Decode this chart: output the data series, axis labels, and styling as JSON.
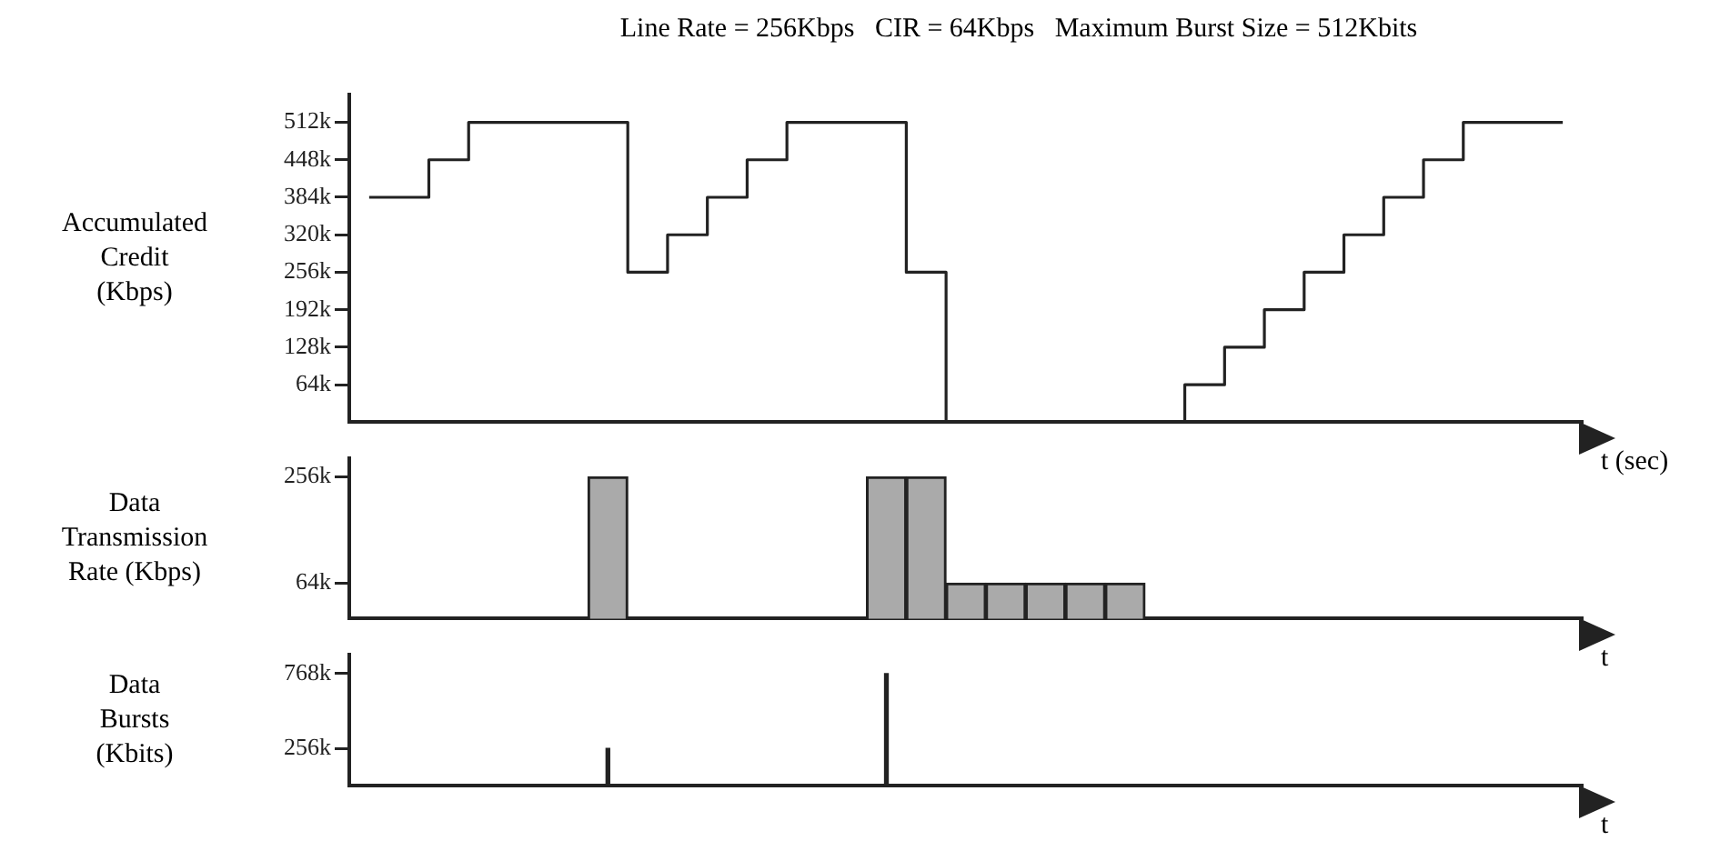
{
  "chart_data": [
    {
      "type": "step",
      "title": "Line Rate = 256Kbps   CIR = 64Kbps   Maximum Burst Size = 512Kbits",
      "ylabel": "Accumulated Credit (Kbps)",
      "xlabel": "t (sec)",
      "categories": [
        null,
        null,
        null,
        null,
        null,
        null,
        null,
        null,
        null,
        null,
        null,
        null,
        null,
        null,
        null,
        null,
        null,
        null,
        null,
        null,
        null,
        null,
        null,
        null,
        null,
        null,
        null,
        null,
        null,
        null,
        null
      ],
      "values": [
        384,
        384,
        448,
        512,
        512,
        512,
        512,
        256,
        320,
        384,
        448,
        512,
        512,
        512,
        256,
        0,
        0,
        0,
        0,
        0,
        0,
        64,
        128,
        192,
        256,
        320,
        384,
        448,
        512,
        512,
        512
      ],
      "color": "#222222",
      "ylim": [
        0,
        560
      ],
      "yticks": [
        {
          "value": 64,
          "label": "64k"
        },
        {
          "value": 128,
          "label": "128k"
        },
        {
          "value": 192,
          "label": "192k"
        },
        {
          "value": 256,
          "label": "256k"
        },
        {
          "value": 320,
          "label": "320k"
        },
        {
          "value": 384,
          "label": "384k"
        },
        {
          "value": 448,
          "label": "448k"
        },
        {
          "value": 512,
          "label": "512k"
        }
      ],
      "grid": false
    },
    {
      "type": "bar",
      "ylabel": "Data Transmission Rate (Kbps)",
      "xlabel": "t",
      "categories": [
        null,
        null,
        null,
        null,
        null,
        null,
        null,
        null,
        null,
        null,
        null,
        null,
        null,
        null,
        null,
        null,
        null,
        null,
        null,
        null,
        null,
        null,
        null,
        null,
        null,
        null,
        null,
        null,
        null,
        null,
        null
      ],
      "values": [
        null,
        null,
        null,
        null,
        null,
        null,
        256,
        null,
        null,
        null,
        null,
        null,
        null,
        256,
        256,
        64,
        64,
        64,
        64,
        64,
        null,
        null,
        null,
        null,
        null,
        null,
        null,
        null,
        null,
        null,
        null
      ],
      "color": "#aaaaaa",
      "ylim": [
        0,
        290
      ],
      "yticks": [
        {
          "value": 64,
          "label": "64k"
        },
        {
          "value": 256,
          "label": "256k"
        }
      ],
      "grid": false
    },
    {
      "type": "bar",
      "ylabel": "Data Bursts (Kbits)",
      "xlabel": "t",
      "categories": [
        null,
        null,
        null,
        null,
        null,
        null,
        null,
        null,
        null,
        null,
        null,
        null,
        null,
        null,
        null,
        null,
        null,
        null,
        null,
        null,
        null,
        null,
        null,
        null,
        null,
        null,
        null,
        null,
        null,
        null,
        null
      ],
      "values": [
        null,
        null,
        null,
        null,
        null,
        null,
        256,
        null,
        null,
        null,
        null,
        null,
        null,
        768,
        null,
        null,
        null,
        null,
        null,
        null,
        null,
        null,
        null,
        null,
        null,
        null,
        null,
        null,
        null,
        null,
        null
      ],
      "color": "#222222",
      "ylim": [
        0,
        900
      ],
      "yticks": [
        {
          "value": 256,
          "label": "256k"
        },
        {
          "value": 768,
          "label": "768k"
        }
      ],
      "grid": false
    }
  ]
}
